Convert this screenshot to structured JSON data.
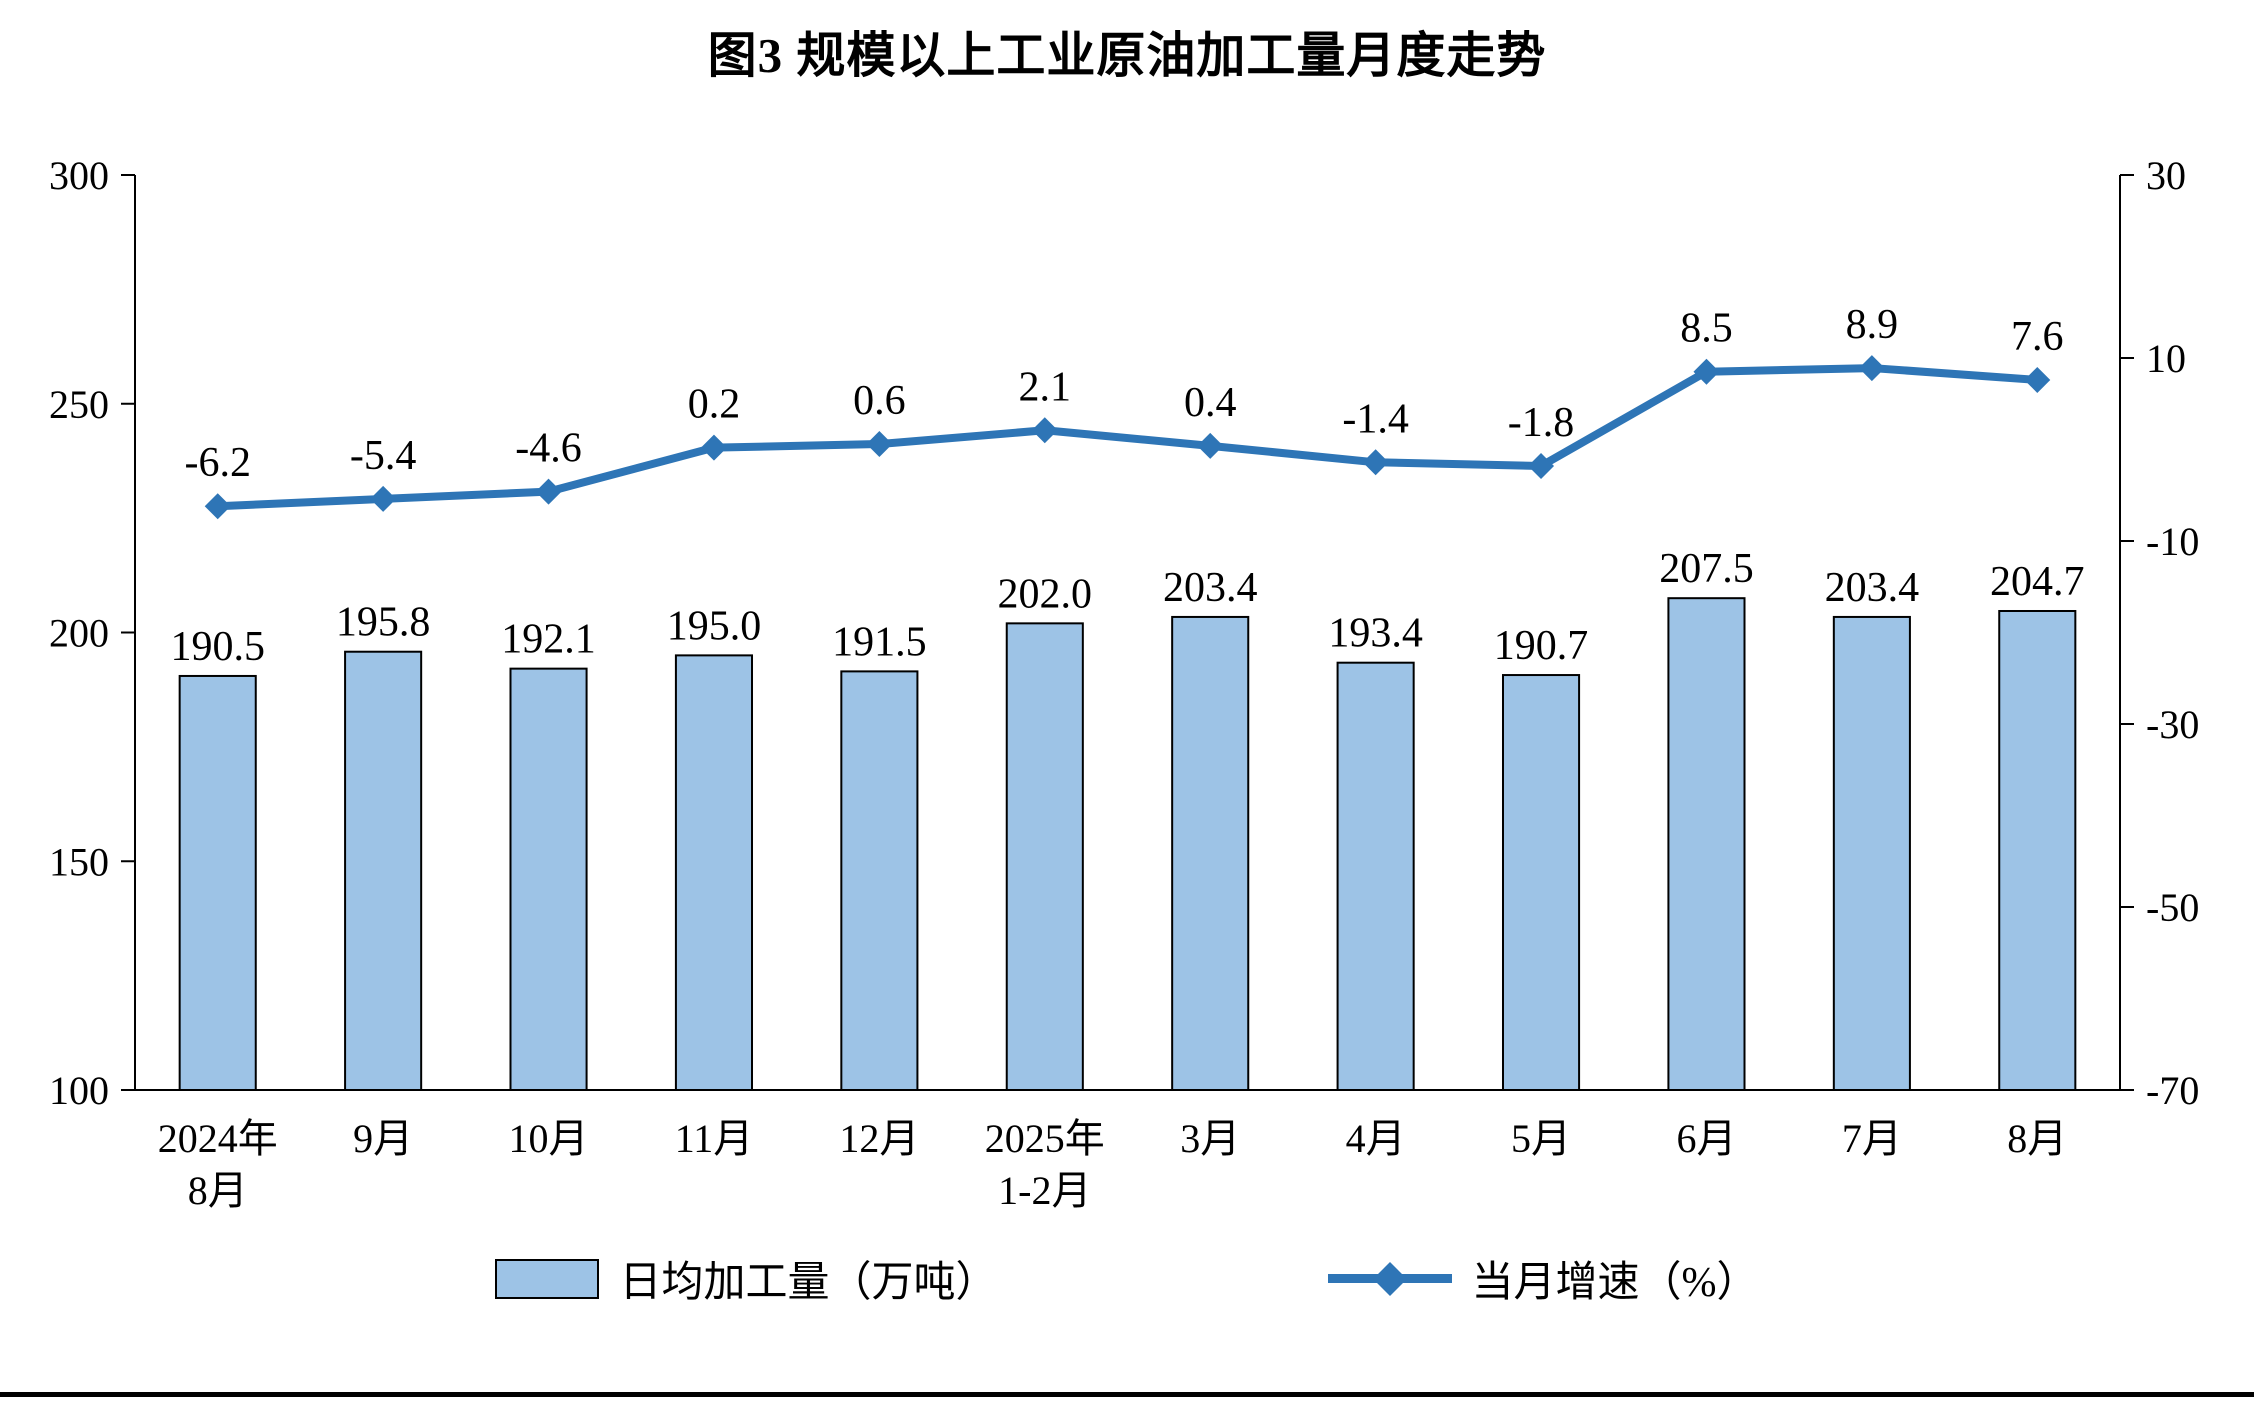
{
  "page": {
    "title": "图3 规模以上工业原油加工量月度走势"
  },
  "legend": {
    "bar_label": "日均加工量（万吨）",
    "line_label": "当月增速（%）"
  },
  "chart_data": {
    "type": "bar+line combo",
    "title": "图3 规模以上工业原油加工量月度走势",
    "categories": [
      "2024年\n8月",
      "9月",
      "10月",
      "11月",
      "12月",
      "2025年\n1-2月",
      "3月",
      "4月",
      "5月",
      "6月",
      "7月",
      "8月"
    ],
    "series": [
      {
        "name": "日均加工量（万吨）",
        "type": "bar",
        "axis": "left",
        "values": [
          190.5,
          195.8,
          192.1,
          195.0,
          191.5,
          202.0,
          203.4,
          193.4,
          190.7,
          207.5,
          203.4,
          204.7
        ]
      },
      {
        "name": "当月增速（%）",
        "type": "line",
        "axis": "right",
        "values": [
          -6.2,
          -5.4,
          -4.6,
          0.2,
          0.6,
          2.1,
          0.4,
          -1.4,
          -1.8,
          8.5,
          8.9,
          7.6
        ]
      }
    ],
    "left_axis": {
      "min": 100,
      "max": 300,
      "ticks": [
        100,
        150,
        200,
        250,
        300
      ]
    },
    "right_axis": {
      "min": -70,
      "max": 30,
      "ticks": [
        -70,
        -50,
        -30,
        -10,
        10,
        30
      ]
    },
    "colors": {
      "bar_fill": "#9DC3E6",
      "bar_border": "#000000",
      "line": "#2E75B6",
      "text": "#000000"
    },
    "legend_position": "bottom",
    "grid": false,
    "data_labels": true
  }
}
